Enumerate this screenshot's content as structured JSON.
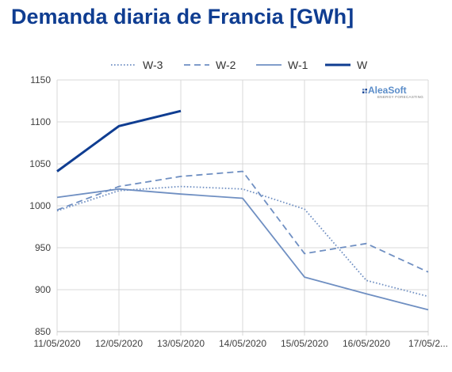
{
  "title": "Demanda diaria de Francia [GWh]",
  "logo": {
    "name": "AleaSoft",
    "tagline": "ENERGY FORECASTING"
  },
  "colors": {
    "light": "#6f8fc2",
    "dark": "#0f3d91",
    "grid": "#d9d9d9",
    "axis": "#bfbfbf"
  },
  "chart_data": {
    "type": "line",
    "title": "Demanda diaria de Francia [GWh]",
    "xlabel": "",
    "ylabel": "",
    "categories": [
      "11/05/2020",
      "12/05/2020",
      "13/05/2020",
      "14/05/2020",
      "15/05/2020",
      "16/05/2020",
      "17/05/2..."
    ],
    "ylim": [
      850,
      1150
    ],
    "yticks": [
      850,
      900,
      950,
      1000,
      1050,
      1100,
      1150
    ],
    "grid": true,
    "legend_position": "top",
    "series": [
      {
        "name": "W-3",
        "style": "dotted",
        "color": "#6f8fc2",
        "values": [
          994,
          1018,
          1023,
          1020,
          996,
          911,
          892
        ]
      },
      {
        "name": "W-2",
        "style": "dashed",
        "color": "#6f8fc2",
        "values": [
          995,
          1023,
          1035,
          1041,
          943,
          955,
          921
        ]
      },
      {
        "name": "W-1",
        "style": "solid",
        "color": "#6f8fc2",
        "values": [
          1010,
          1020,
          1014,
          1009,
          915,
          895,
          876
        ]
      },
      {
        "name": "W",
        "style": "solid-bold",
        "color": "#0f3d91",
        "values": [
          1041,
          1095,
          1113,
          null,
          null,
          null,
          null
        ]
      }
    ]
  }
}
